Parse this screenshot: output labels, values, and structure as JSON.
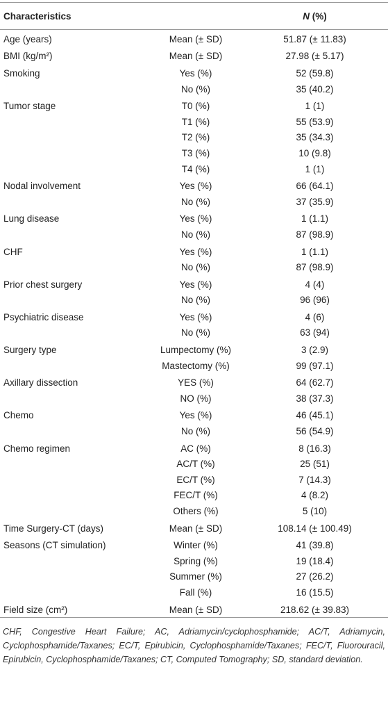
{
  "header": {
    "characteristics": "Characteristics",
    "n_symbol": "N",
    "n_rest": "(%)"
  },
  "groups": [
    {
      "name": "Age (years)",
      "items": [
        [
          "Mean (± SD)",
          "51.87 (± 11.83)"
        ]
      ]
    },
    {
      "name": "BMI (kg/m²)",
      "items": [
        [
          "Mean (± SD)",
          "27.98 (± 5.17)"
        ]
      ]
    },
    {
      "name": "Smoking",
      "items": [
        [
          "Yes (%)",
          "52 (59.8)"
        ],
        [
          "No (%)",
          "35 (40.2)"
        ]
      ]
    },
    {
      "name": "Tumor stage",
      "items": [
        [
          "T0 (%)",
          "1 (1)"
        ],
        [
          "T1 (%)",
          "55 (53.9)"
        ],
        [
          "T2 (%)",
          "35 (34.3)"
        ],
        [
          "T3 (%)",
          "10 (9.8)"
        ],
        [
          "T4 (%)",
          "1 (1)"
        ]
      ]
    },
    {
      "name": "Nodal involvement",
      "items": [
        [
          "Yes (%)",
          "66 (64.1)"
        ],
        [
          "No (%)",
          "37 (35.9)"
        ]
      ]
    },
    {
      "name": "Lung disease",
      "items": [
        [
          "Yes (%)",
          "1 (1.1)"
        ],
        [
          "No (%)",
          "87 (98.9)"
        ]
      ]
    },
    {
      "name": "CHF",
      "items": [
        [
          "Yes (%)",
          "1 (1.1)"
        ],
        [
          "No (%)",
          "87 (98.9)"
        ]
      ]
    },
    {
      "name": "Prior chest surgery",
      "items": [
        [
          "Yes (%)",
          "4 (4)"
        ],
        [
          "No (%)",
          "96 (96)"
        ]
      ]
    },
    {
      "name": "Psychiatric disease",
      "items": [
        [
          "Yes (%)",
          "4 (6)"
        ],
        [
          "No (%)",
          "63 (94)"
        ]
      ]
    },
    {
      "name": "Surgery type",
      "items": [
        [
          "Lumpectomy (%)",
          "3 (2.9)"
        ],
        [
          "Mastectomy (%)",
          "99 (97.1)"
        ]
      ]
    },
    {
      "name": "Axillary dissection",
      "items": [
        [
          "YES (%)",
          "64 (62.7)"
        ],
        [
          "NO (%)",
          "38 (37.3)"
        ]
      ]
    },
    {
      "name": "Chemo",
      "items": [
        [
          "Yes (%)",
          "46 (45.1)"
        ],
        [
          "No (%)",
          "56 (54.9)"
        ]
      ]
    },
    {
      "name": "Chemo regimen",
      "items": [
        [
          "AC (%)",
          "8 (16.3)"
        ],
        [
          "AC/T (%)",
          "25 (51)"
        ],
        [
          "EC/T (%)",
          "7 (14.3)"
        ],
        [
          "FEC/T (%)",
          "4 (8.2)"
        ],
        [
          "Others (%)",
          "5 (10)"
        ]
      ]
    },
    {
      "name": "Time Surgery-CT (days)",
      "items": [
        [
          "Mean (± SD)",
          "108.14 (± 100.49)"
        ]
      ]
    },
    {
      "name": "Seasons (CT simulation)",
      "items": [
        [
          "Winter (%)",
          "41 (39.8)"
        ],
        [
          "Spring (%)",
          "19 (18.4)"
        ],
        [
          "Summer (%)",
          "27 (26.2)"
        ],
        [
          "Fall (%)",
          "16 (15.5)"
        ]
      ]
    },
    {
      "name": "Field size (cm²)",
      "items": [
        [
          "Mean (± SD)",
          "218.62 (± 39.83)"
        ]
      ]
    }
  ],
  "footnote": "CHF, Congestive Heart Failure; AC, Adriamycin/cyclophosphamide; AC/T, Adriamycin, Cyclophosphamide/Taxanes; EC/T, Epirubicin, Cyclophosphamide/Taxanes; FEC/T, Fluorouracil, Epirubicin, Cyclophosphamide/Taxanes; CT, Computed Tomography; SD, standard deviation."
}
